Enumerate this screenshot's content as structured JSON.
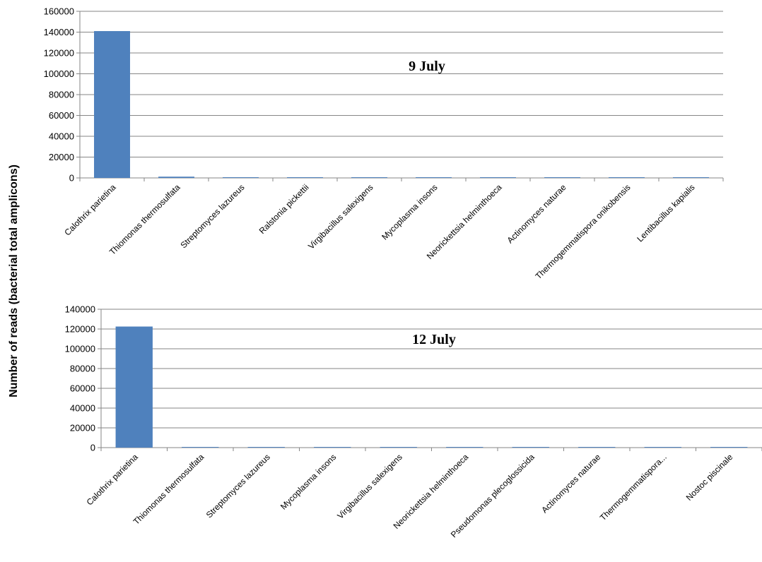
{
  "ylabel": "Number of reads (bacterial total amplicons)",
  "chart_data": [
    {
      "type": "bar",
      "title": "9 July",
      "ylim": [
        0,
        160000
      ],
      "yticks": [
        0,
        20000,
        40000,
        60000,
        80000,
        100000,
        120000,
        140000,
        160000
      ],
      "grid": true,
      "color": "#4F81BD",
      "categories": [
        "Calothrix parietina",
        "Thiomonas thermosulfata",
        "Streptomyces lazureus",
        "Ralstonia pickettii",
        "Virgibacillus salexigens",
        "Mycoplasma insons",
        "Neorickettsia helminthoeca",
        "Actinomyces naturae",
        "Thermogemmatispora onikobensis",
        "Lentibacillus kapialis"
      ],
      "values": [
        141000,
        1200,
        400,
        400,
        400,
        400,
        400,
        400,
        400,
        400
      ]
    },
    {
      "type": "bar",
      "title": "12 July",
      "ylim": [
        0,
        140000
      ],
      "yticks": [
        0,
        20000,
        40000,
        60000,
        80000,
        100000,
        120000,
        140000
      ],
      "grid": true,
      "color": "#4F81BD",
      "categories": [
        "Calothrix parietina",
        "Thiomonas thermosulfata",
        "Streptomyces lazureus",
        "Mycoplasma insons",
        "Virgibacillus salexigens",
        "Neorickettsia helminthoeca",
        "Pseudomonas plecoglossicida",
        "Actinomyces naturae",
        "Thermogemmatispora...",
        "Nostoc piscinale"
      ],
      "values": [
        122500,
        500,
        500,
        500,
        500,
        500,
        500,
        500,
        500,
        500
      ]
    }
  ]
}
